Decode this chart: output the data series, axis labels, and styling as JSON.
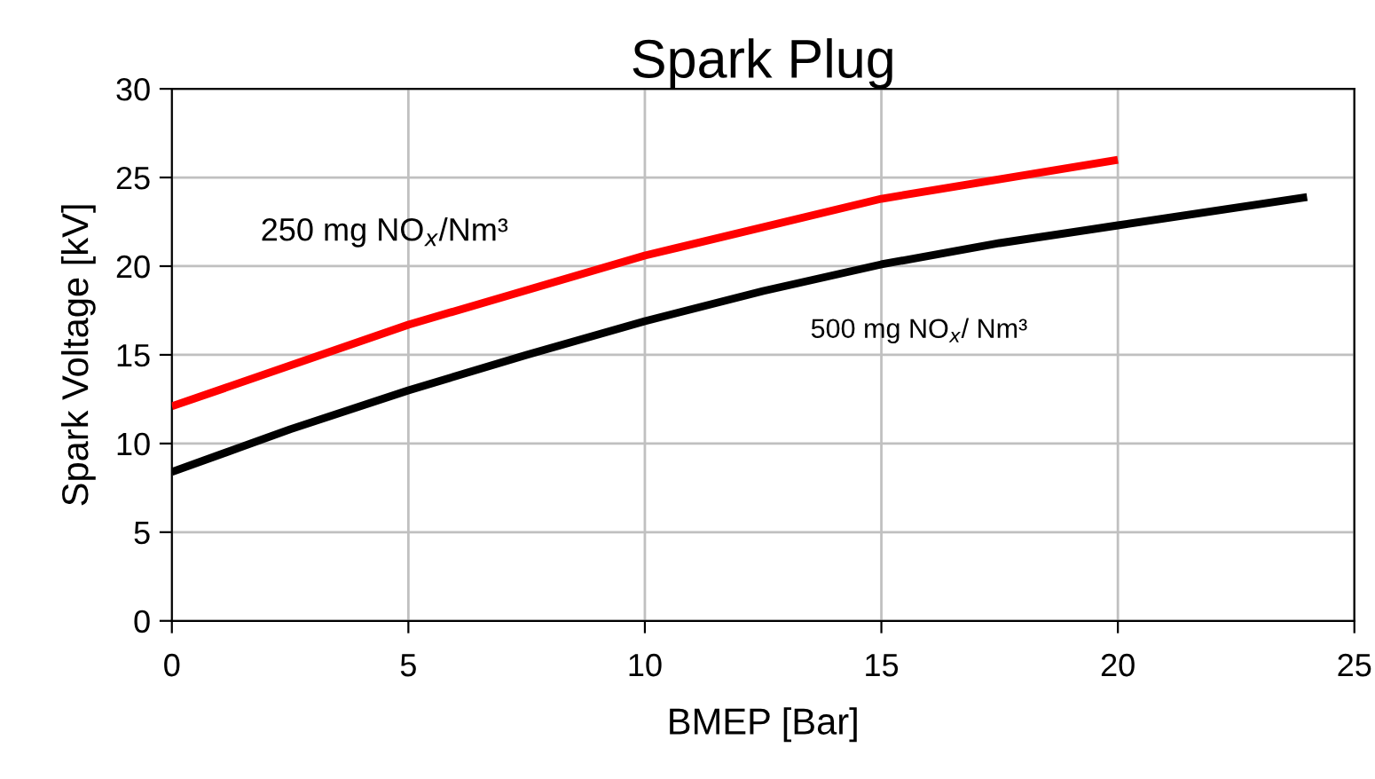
{
  "chart_data": {
    "type": "line",
    "title": "Spark Plug",
    "xlabel": "BMEP [Bar]",
    "ylabel": "Spark Voltage [kV]",
    "xlim": [
      0,
      25
    ],
    "xticks": [
      0,
      5,
      10,
      15,
      20,
      25
    ],
    "ylim": [
      0,
      30
    ],
    "yticks": [
      0,
      5,
      10,
      15,
      20,
      25,
      30
    ],
    "grid": true,
    "legend": false,
    "marker": "none",
    "line_style": "solid",
    "series": [
      {
        "name": "250 mg NO$_{x}$/Nm³",
        "color": "#ff0000",
        "x": [
          0,
          5,
          10,
          15,
          20
        ],
        "values": [
          12.1,
          16.7,
          20.6,
          23.8,
          26.0
        ]
      },
      {
        "name": "500 mg NO$_{x}$/ Nm³",
        "color": "#000000",
        "x": [
          0,
          2.5,
          5,
          7.5,
          10,
          12.5,
          15,
          17.5,
          20,
          24
        ],
        "values": [
          8.4,
          10.8,
          13.0,
          15.0,
          16.9,
          18.6,
          20.1,
          21.3,
          22.3,
          23.9
        ]
      }
    ]
  }
}
